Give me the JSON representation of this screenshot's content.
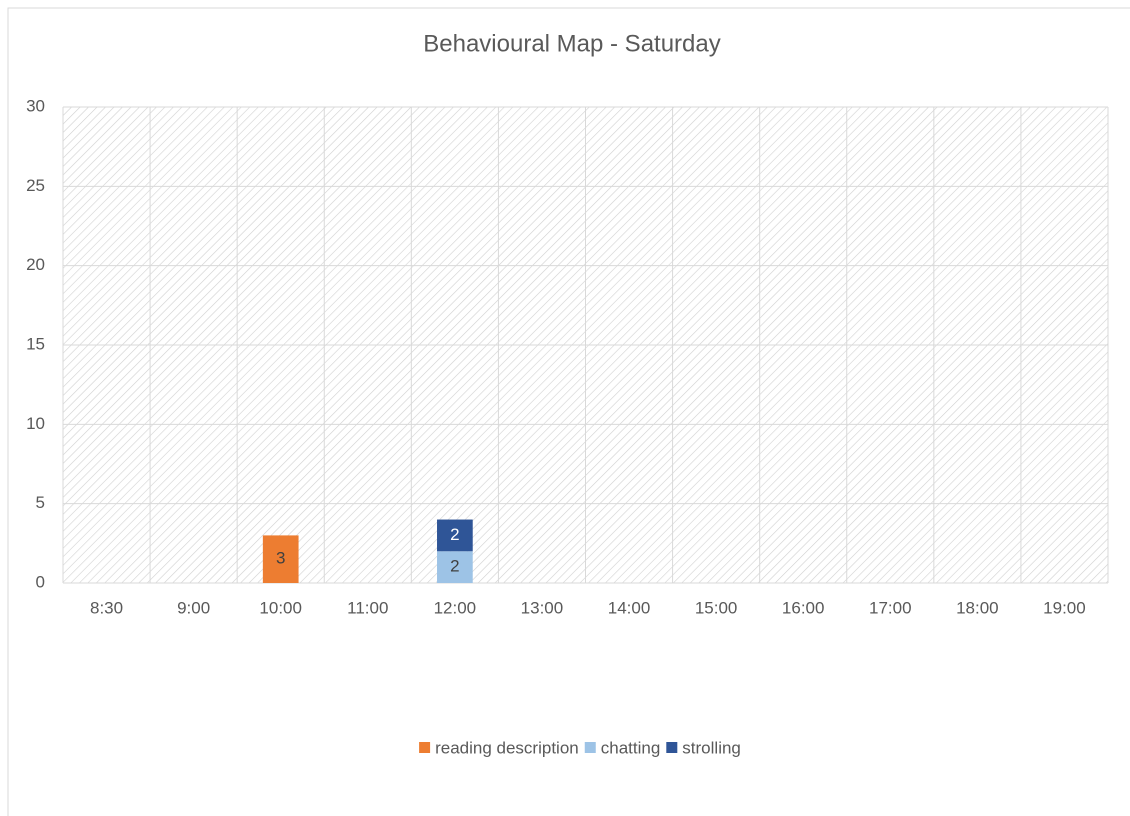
{
  "chart_data": {
    "type": "stacked_bar",
    "title": "Behavioural Map - Saturday",
    "categories": [
      "8:30",
      "9:00",
      "10:00",
      "11:00",
      "12:00",
      "13:00",
      "14:00",
      "15:00",
      "16:00",
      "17:00",
      "18:00",
      "19:00"
    ],
    "series": [
      {
        "name": "reading description",
        "color": "#ed7d31",
        "values": [
          null,
          null,
          3,
          null,
          null,
          null,
          null,
          null,
          null,
          null,
          null,
          null
        ]
      },
      {
        "name": "chatting",
        "color": "#9dc3e6",
        "values": [
          null,
          null,
          null,
          null,
          2,
          null,
          null,
          null,
          null,
          null,
          null,
          null
        ]
      },
      {
        "name": "strolling",
        "color": "#2f5597",
        "values": [
          null,
          null,
          null,
          null,
          2,
          null,
          null,
          null,
          null,
          null,
          null,
          null
        ]
      }
    ],
    "ylim": [
      0,
      30
    ],
    "yticks": [
      0,
      5,
      10,
      15,
      20,
      25,
      30
    ],
    "grid": true,
    "legend": "bottom"
  }
}
